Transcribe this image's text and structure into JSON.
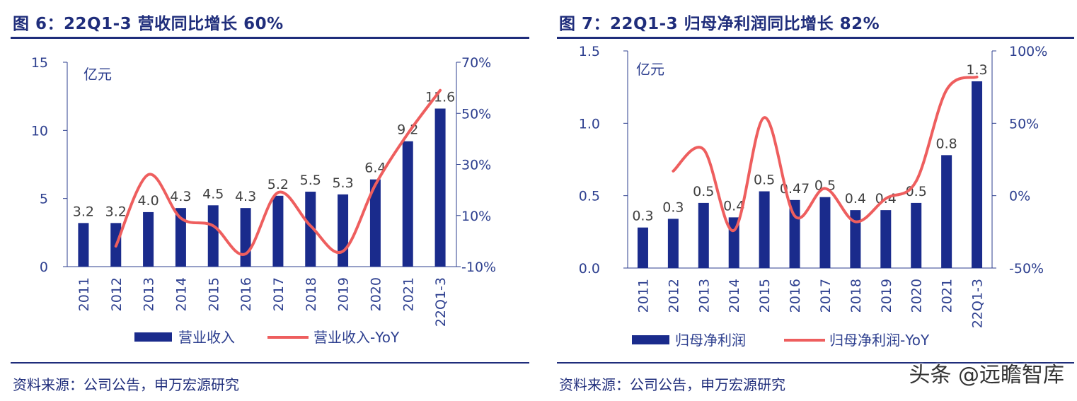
{
  "panels": [
    {
      "title": "图 6：22Q1-3 营收同比增长 60%",
      "source": "资料来源：公司公告，申万宏源研究"
    },
    {
      "title": "图 7：22Q1-3 归母净利润同比增长 82%",
      "source": "资料来源：公司公告，申万宏源研究"
    }
  ],
  "watermark": "头条 @远瞻智库",
  "colors": {
    "bar": "#1a2b8c",
    "line": "#ee5e5e",
    "axis": "#2d3f8f",
    "title": "#1f2d7b"
  },
  "chart_data": [
    {
      "type": "bar",
      "unit_label": "亿元",
      "categories": [
        "2011",
        "2012",
        "2013",
        "2014",
        "2015",
        "2016",
        "2017",
        "2018",
        "2019",
        "2020",
        "2021",
        "22Q1-3"
      ],
      "y_ticks": [
        "0",
        "5",
        "10",
        "15"
      ],
      "y2_ticks": [
        "-10%",
        "10%",
        "30%",
        "50%",
        "70%"
      ],
      "ylim": [
        0,
        15
      ],
      "y2lim": [
        -10,
        70
      ],
      "series": [
        {
          "name": "营业收入",
          "type": "bar",
          "axis": "left",
          "values": [
            3.2,
            3.2,
            4.0,
            4.3,
            4.5,
            4.3,
            5.2,
            5.5,
            5.3,
            6.4,
            9.2,
            11.6
          ],
          "labels": [
            "3.2",
            "3.2",
            "4.0",
            "4.3",
            "4.5",
            "4.3",
            "5.2",
            "5.5",
            "5.3",
            "6.4",
            "9.2",
            "11.6"
          ]
        },
        {
          "name": "营业收入-YoY",
          "type": "line",
          "axis": "right",
          "values": [
            null,
            -2,
            26,
            9,
            6,
            -5,
            19,
            6,
            -4,
            22,
            42,
            59
          ]
        }
      ]
    },
    {
      "type": "bar",
      "unit_label": "亿元",
      "categories": [
        "2011",
        "2012",
        "2013",
        "2014",
        "2015",
        "2016",
        "2017",
        "2018",
        "2019",
        "2020",
        "2021",
        "22Q1-3"
      ],
      "y_ticks": [
        "0.0",
        "0.5",
        "1.0",
        "1.5"
      ],
      "y2_ticks": [
        "-50%",
        "0%",
        "50%",
        "100%"
      ],
      "ylim": [
        0,
        1.5
      ],
      "y2lim": [
        -50,
        100
      ],
      "series": [
        {
          "name": "归母净利润",
          "type": "bar",
          "axis": "left",
          "values": [
            0.28,
            0.34,
            0.45,
            0.35,
            0.53,
            0.47,
            0.49,
            0.4,
            0.4,
            0.45,
            0.78,
            1.29
          ],
          "labels": [
            "0.3",
            "0.3",
            "0.5",
            "0.4",
            "0.5",
            "0.47",
            "0.5",
            "0.4",
            "0.4",
            "0.5",
            "0.8",
            "1.3"
          ]
        },
        {
          "name": "归母净利润-YoY",
          "type": "line",
          "axis": "right",
          "values": [
            null,
            17,
            32,
            -24,
            54,
            -14,
            5,
            -18,
            -2,
            10,
            73,
            82
          ]
        }
      ]
    }
  ]
}
